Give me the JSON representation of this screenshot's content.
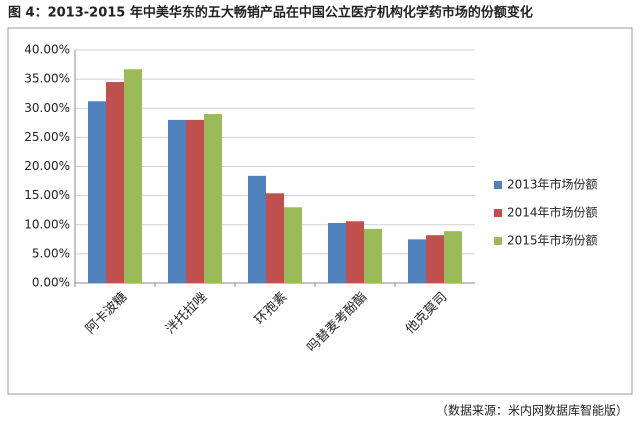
{
  "chart_data": {
    "type": "bar",
    "title": "图 4：2013-2015 年中美华东的五大畅销产品在中国公立医疗机构化学药市场的份额变化",
    "source": "（数据来源：米内网数据库智能版）",
    "categories": [
      "阿卡波糖",
      "泮托拉唑",
      "环孢素",
      "吗替麦考酚酯",
      "他克莫司"
    ],
    "series": [
      {
        "name": "2013年市场份额",
        "color": "#4f81bd",
        "values": [
          31.2,
          28.0,
          18.4,
          10.3,
          7.5
        ]
      },
      {
        "name": "2014年市场份额",
        "color": "#c0504d",
        "values": [
          34.5,
          28.0,
          15.4,
          10.6,
          8.2
        ]
      },
      {
        "name": "2015年市场份额",
        "color": "#9bbb59",
        "values": [
          36.7,
          29.0,
          13.0,
          9.3,
          8.9
        ]
      }
    ],
    "ylim": [
      0,
      40
    ],
    "yticks": [
      {
        "value": 0,
        "label": "0.00%"
      },
      {
        "value": 5,
        "label": "5.00%"
      },
      {
        "value": 10,
        "label": "10.00%"
      },
      {
        "value": 15,
        "label": "15.00%"
      },
      {
        "value": 20,
        "label": "20.00%"
      },
      {
        "value": 25,
        "label": "25.00%"
      },
      {
        "value": 30,
        "label": "30.00%"
      },
      {
        "value": 35,
        "label": "35.00%"
      },
      {
        "value": 40,
        "label": "40.00%"
      }
    ],
    "grid": true,
    "legend": "right"
  }
}
